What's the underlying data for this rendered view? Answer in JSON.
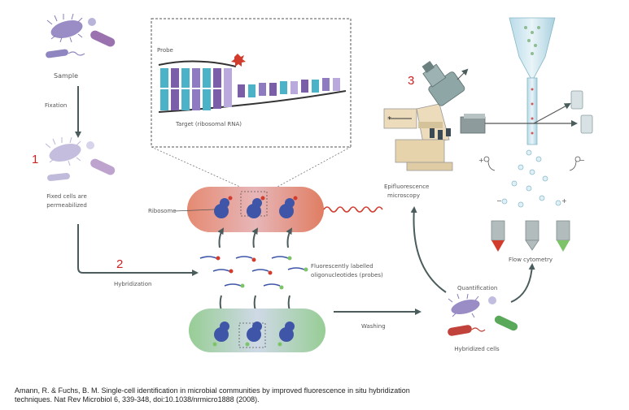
{
  "colors": {
    "step_number": "#cc2222",
    "arrow": "#4a5d5c",
    "cell_purple": "#9a8cc4",
    "cell_red": "#d9715a",
    "cell_green": "#9fcf9c",
    "ribosome_blue": "#3e55a8",
    "probe_red": "#d23c2c",
    "probe_green": "#7cc36a"
  },
  "labels": {
    "sample": "Sample",
    "fixation": "Fixation",
    "fixed_cells": [
      "Fixed cells are",
      "permeabilized"
    ],
    "probe": "Probe",
    "target": "Target (ribosomal RNA)",
    "ribosome": "Ribosome",
    "hybridization": "Hybridization",
    "probes": [
      "Fluorescently labelled",
      "oligonucleotides (probes)"
    ],
    "washing": "Washing",
    "epifluorescence": [
      "Epifluorescence",
      "microscopy"
    ],
    "quantification": "Quantification",
    "hybridized_cells": "Hybridized cells",
    "flow_cytometry": "Flow cytometry",
    "plus": "+",
    "minus": "−"
  },
  "step_numbers": [
    "1",
    "2",
    "3"
  ],
  "citation": [
    "Amann, R. & Fuchs, B. M. Single-cell identification in microbial communities by improved fluorescence in situ hybridization",
    "techniques. Nat Rev Microbiol 6, 339-348, doi:10.1038/nrmicro1888 (2008)."
  ]
}
